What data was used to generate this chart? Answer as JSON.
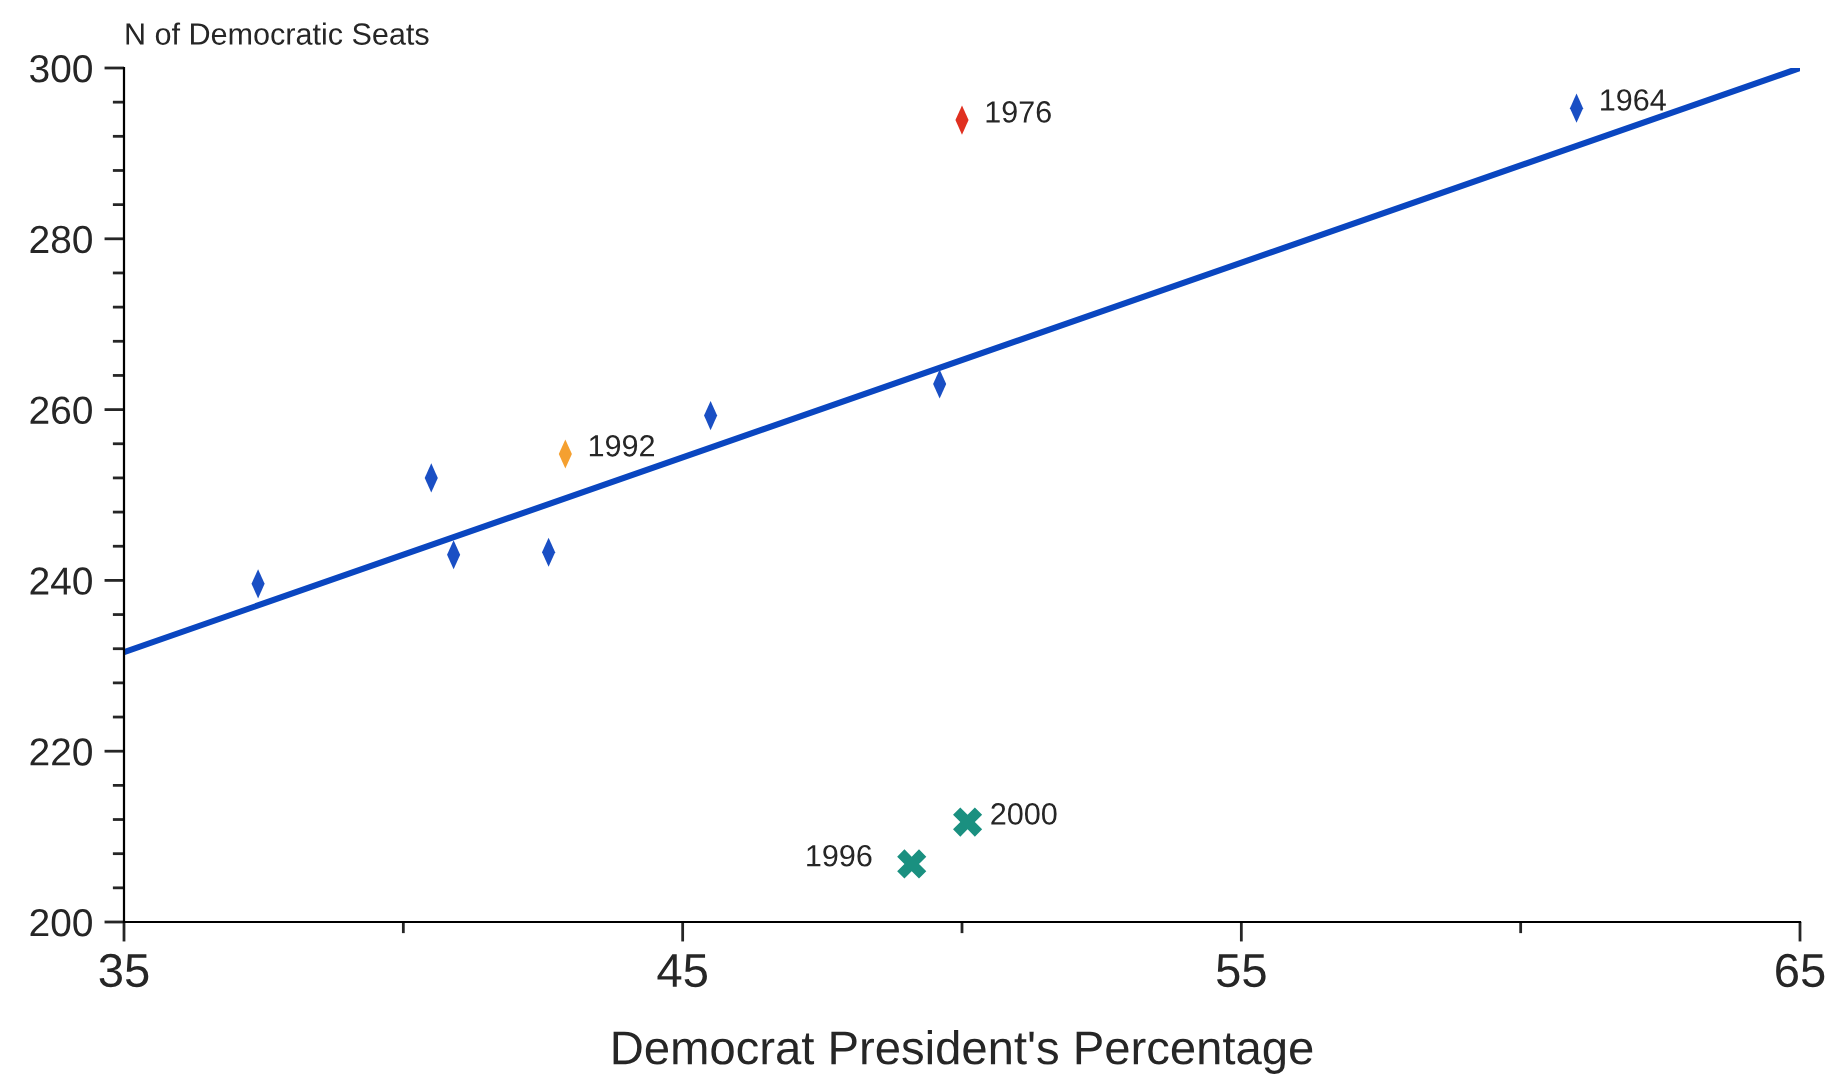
{
  "chart_data": {
    "type": "scatter",
    "xlabel": "Democrat President's Percentage",
    "ylabel": "N of Democratic Seats",
    "xlim": [
      35,
      65
    ],
    "ylim": [
      200,
      300
    ],
    "xticks": [
      35,
      45,
      55,
      65
    ],
    "yticks": [
      200,
      220,
      240,
      260,
      280,
      300
    ],
    "grid": false,
    "series": [
      {
        "color": "#1a4fc4",
        "x": [
          37.4,
          40.5,
          40.9,
          42.6,
          45.5,
          49.6,
          61.0
        ],
        "values": [
          239.6,
          252.0,
          243.0,
          243.3,
          259.3,
          263.0,
          295.3
        ]
      },
      {
        "color": "#f5a030",
        "x": [
          42.9
        ],
        "values": [
          254.8
        ]
      },
      {
        "color": "#e03020",
        "x": [
          50.0
        ],
        "values": [
          293.9
        ]
      },
      {
        "marker": "cross",
        "color": "#1a9080",
        "x": [
          49.1,
          50.1
        ],
        "values": [
          206.8,
          211.7
        ]
      },
      {
        "type": "line",
        "color": "#0a46c0",
        "x": [
          35,
          65
        ],
        "values": [
          231.6,
          300
        ]
      }
    ],
    "annotations": [
      {
        "text": "1964",
        "x": 61.0,
        "y": 295.3
      },
      {
        "text": "1992",
        "x": 42.9,
        "y": 254.8
      },
      {
        "text": "1976",
        "x": 50.0,
        "y": 293.9
      },
      {
        "text": "2000",
        "x": 50.1,
        "y": 211.7
      },
      {
        "text": "1996",
        "x": 49.1,
        "y": 206.8
      }
    ]
  }
}
